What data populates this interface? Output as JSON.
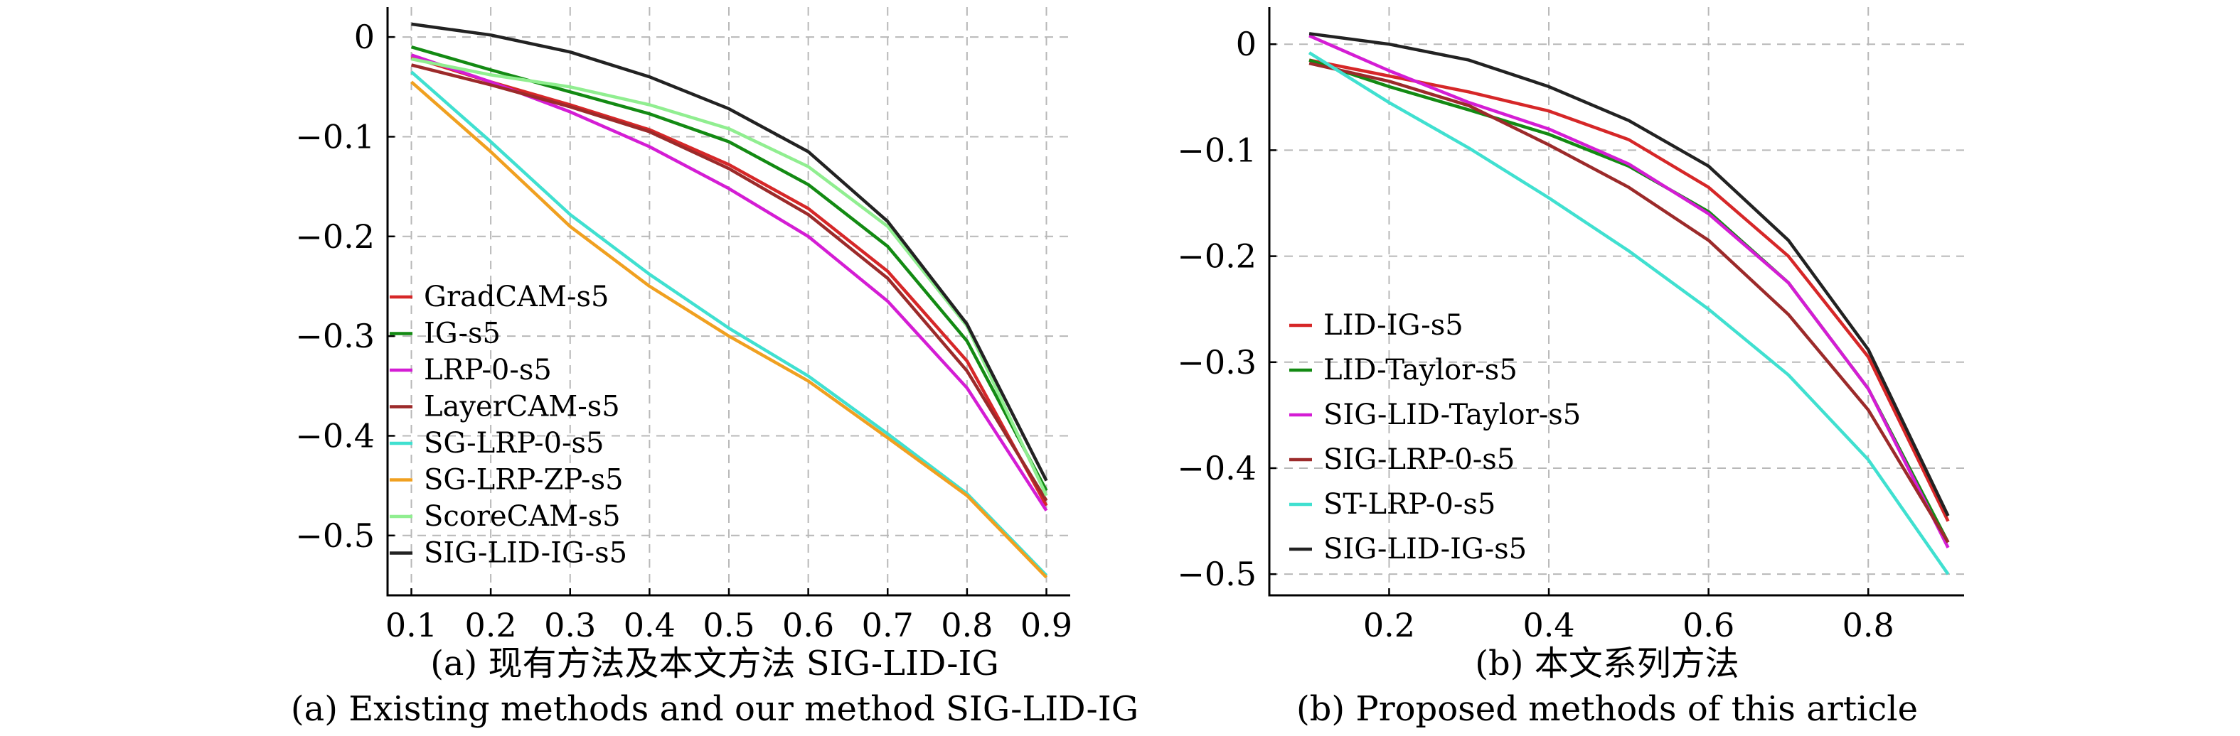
{
  "chart_data": [
    {
      "type": "line",
      "caption_cn": "(a) 现有方法及本文方法 SIG-LID-IG",
      "caption_en": "(a) Existing methods and our method SIG-LID-IG",
      "xlim": [
        0.07,
        0.93
      ],
      "ylim": [
        -0.56,
        0.03
      ],
      "xticks": [
        0.1,
        0.2,
        0.3,
        0.4,
        0.5,
        0.6,
        0.7,
        0.8,
        0.9
      ],
      "xtick_labels": [
        "0.1",
        "0.2",
        "0.3",
        "0.4",
        "0.5",
        "0.6",
        "0.7",
        "0.8",
        "0.9"
      ],
      "yticks": [
        0,
        -0.1,
        -0.2,
        -0.3,
        -0.4,
        -0.5
      ],
      "ytick_labels": [
        "0",
        "−0.1",
        "−0.2",
        "−0.3",
        "−0.4",
        "−0.5"
      ],
      "grid": true,
      "legend_position": "bottom-left",
      "x": [
        0.1,
        0.2,
        0.3,
        0.4,
        0.5,
        0.6,
        0.7,
        0.8,
        0.9
      ],
      "series": [
        {
          "name": "GradCAM-s5",
          "color": "#d62728",
          "values": [
            -0.02,
            -0.045,
            -0.068,
            -0.093,
            -0.128,
            -0.172,
            -0.235,
            -0.325,
            -0.47
          ]
        },
        {
          "name": "IG-s5",
          "color": "#138a13",
          "values": [
            -0.01,
            -0.033,
            -0.055,
            -0.077,
            -0.105,
            -0.148,
            -0.21,
            -0.305,
            -0.455
          ]
        },
        {
          "name": "LRP-0-s5",
          "color": "#d41dd4",
          "values": [
            -0.018,
            -0.045,
            -0.075,
            -0.11,
            -0.152,
            -0.2,
            -0.265,
            -0.352,
            -0.475
          ]
        },
        {
          "name": "LayerCAM-s5",
          "color": "#9c2a2a",
          "values": [
            -0.028,
            -0.048,
            -0.07,
            -0.095,
            -0.132,
            -0.178,
            -0.242,
            -0.335,
            -0.465
          ]
        },
        {
          "name": "SG-LRP-0-s5",
          "color": "#40e0d0",
          "values": [
            -0.035,
            -0.105,
            -0.178,
            -0.238,
            -0.292,
            -0.34,
            -0.398,
            -0.458,
            -0.54
          ]
        },
        {
          "name": "SG-LRP-ZP-s5",
          "color": "#f0a020",
          "values": [
            -0.045,
            -0.115,
            -0.19,
            -0.25,
            -0.3,
            -0.345,
            -0.402,
            -0.46,
            -0.542
          ]
        },
        {
          "name": "ScoreCAM-s5",
          "color": "#90ee90",
          "values": [
            -0.022,
            -0.038,
            -0.05,
            -0.068,
            -0.092,
            -0.13,
            -0.19,
            -0.29,
            -0.46
          ]
        },
        {
          "name": "SIG-LID-IG-s5",
          "color": "#222222",
          "values": [
            0.013,
            0.002,
            -0.015,
            -0.04,
            -0.072,
            -0.115,
            -0.185,
            -0.288,
            -0.445
          ]
        }
      ]
    },
    {
      "type": "line",
      "caption_cn": "(b) 本文系列方法",
      "caption_en": "(b) Proposed methods of this article",
      "xlim": [
        0.05,
        0.92
      ],
      "ylim": [
        -0.52,
        0.035
      ],
      "xticks": [
        0.2,
        0.4,
        0.6,
        0.8
      ],
      "xtick_labels": [
        "0.2",
        "0.4",
        "0.6",
        "0.8"
      ],
      "yticks": [
        0,
        -0.1,
        -0.2,
        -0.3,
        -0.4,
        -0.5
      ],
      "ytick_labels": [
        "0",
        "−0.1",
        "−0.2",
        "−0.3",
        "−0.4",
        "−0.5"
      ],
      "grid": true,
      "legend_position": "bottom-left",
      "x": [
        0.1,
        0.2,
        0.3,
        0.4,
        0.5,
        0.6,
        0.7,
        0.8,
        0.9
      ],
      "series": [
        {
          "name": "LID-IG-s5",
          "color": "#d62728",
          "values": [
            -0.015,
            -0.03,
            -0.045,
            -0.063,
            -0.09,
            -0.135,
            -0.2,
            -0.295,
            -0.45
          ]
        },
        {
          "name": "LID-Taylor-s5",
          "color": "#138a13",
          "values": [
            -0.015,
            -0.04,
            -0.062,
            -0.085,
            -0.115,
            -0.158,
            -0.225,
            -0.325,
            -0.47
          ]
        },
        {
          "name": "SIG-LID-Taylor-s5",
          "color": "#d41dd4",
          "values": [
            0.008,
            -0.025,
            -0.055,
            -0.08,
            -0.113,
            -0.16,
            -0.225,
            -0.325,
            -0.475
          ]
        },
        {
          "name": "SIG-LRP-0-s5",
          "color": "#9c2a2a",
          "values": [
            -0.018,
            -0.035,
            -0.058,
            -0.095,
            -0.135,
            -0.185,
            -0.255,
            -0.345,
            -0.47
          ]
        },
        {
          "name": "ST-LRP-0-s5",
          "color": "#40e0d0",
          "values": [
            -0.008,
            -0.055,
            -0.098,
            -0.145,
            -0.195,
            -0.25,
            -0.312,
            -0.392,
            -0.5
          ]
        },
        {
          "name": "SIG-LID-IG-s5",
          "color": "#222222",
          "values": [
            0.01,
            0.0,
            -0.015,
            -0.04,
            -0.072,
            -0.115,
            -0.185,
            -0.288,
            -0.445
          ]
        }
      ]
    }
  ]
}
